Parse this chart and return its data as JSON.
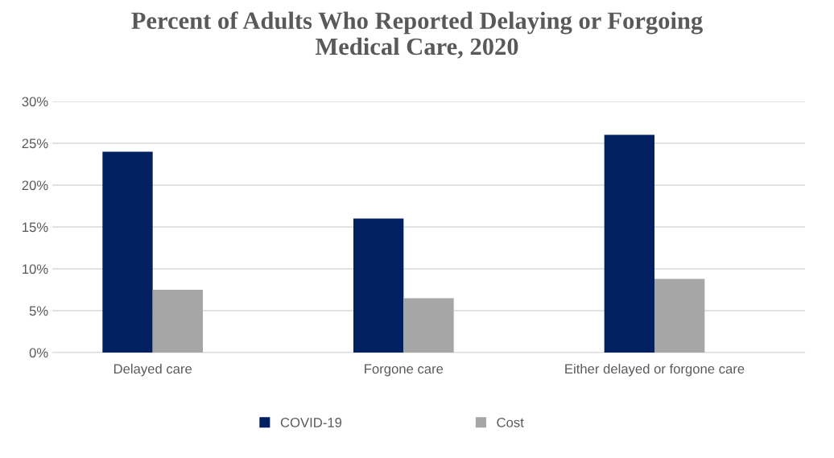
{
  "chart_data": {
    "type": "bar",
    "title": "Percent of Adults Who Reported Delaying or Forgoing\nMedical Care, 2020",
    "categories": [
      "Delayed care",
      "Forgone care",
      "Either delayed or forgone care"
    ],
    "series": [
      {
        "name": "COVID-19",
        "color": "#002060",
        "values": [
          24,
          16,
          26
        ]
      },
      {
        "name": "Cost",
        "color": "#a6a6a6",
        "values": [
          7.5,
          6.5,
          8.8
        ]
      }
    ],
    "ylim": [
      0,
      30
    ],
    "yticks": [
      {
        "value": 0,
        "label": "0%"
      },
      {
        "value": 5,
        "label": "5%"
      },
      {
        "value": 10,
        "label": "10%"
      },
      {
        "value": 15,
        "label": "15%"
      },
      {
        "value": 20,
        "label": "20%"
      },
      {
        "value": 25,
        "label": "25%"
      },
      {
        "value": 30,
        "label": "30%"
      }
    ],
    "grid": "y",
    "legend": "bottom"
  }
}
